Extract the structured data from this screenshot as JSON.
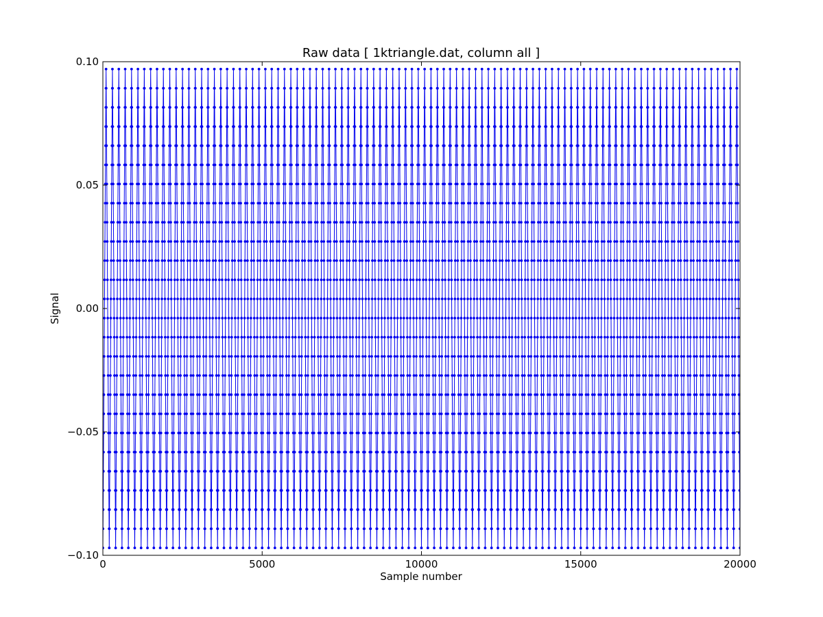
{
  "chart_data": {
    "type": "scatter",
    "title": "Raw data  [ 1ktriangle.dat, column all ]",
    "xlabel": "Sample number",
    "ylabel": "Signal",
    "xlim": [
      0,
      20000
    ],
    "ylim": [
      -0.1,
      0.1
    ],
    "xticks": [
      0,
      5000,
      10000,
      15000,
      20000
    ],
    "xtick_labels": [
      "0",
      "5000",
      "10000",
      "15000",
      "20000"
    ],
    "yticks": [
      -0.1,
      -0.05,
      0.0,
      0.05,
      0.1
    ],
    "ytick_labels": [
      "−0.10",
      "−0.05",
      "0.00",
      "0.05",
      "0.10"
    ],
    "grid": false,
    "series": [
      {
        "color": "#0000ee",
        "marker": "dot-line",
        "waveform": "triangle",
        "amplitude": 0.097,
        "offset": 0.0,
        "period_samples": 200,
        "sample_count": 20000
      }
    ]
  }
}
